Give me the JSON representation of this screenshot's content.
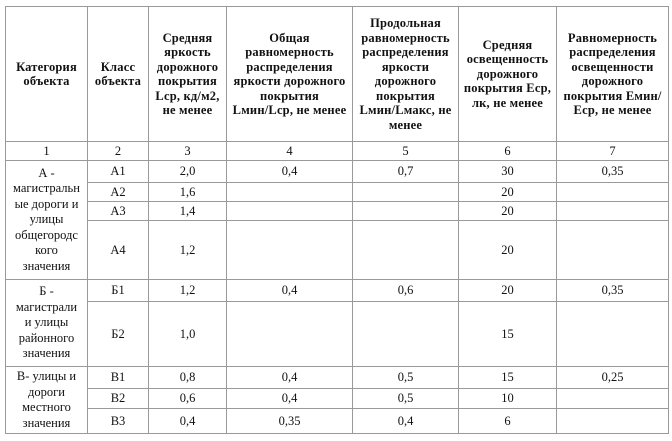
{
  "headers": [
    "Категория объекта",
    "Класс объекта",
    "Средняя яркость дорожного покрытия Lср, кд/м2, не менее",
    "Общая равномерность распределения яркости дорожного покрытия Lмин/Lср, не менее",
    "Продольная равномерность распределения яркости дорожного покрытия Lмин/Lмакс, не менее",
    "Средняя освещенность дорожного покрытия Еср, лк, не менее",
    "Равномерность распределения освещенности дорожного покрытия Емин/Еср, не менее"
  ],
  "column_numbers": [
    "1",
    "2",
    "3",
    "4",
    "5",
    "6",
    "7"
  ],
  "groups": [
    {
      "category_lines": [
        "А -",
        "магистральн",
        "ые дороги и",
        "улицы",
        "общегородс",
        "кого",
        "значения"
      ],
      "rows": [
        {
          "class": "А1",
          "l_avg": "2,0",
          "l_uniform": "0,4",
          "l_long": "0,7",
          "e_avg": "30",
          "e_uniform": "0,35"
        },
        {
          "class": "А2",
          "l_avg": "1,6",
          "l_uniform": "",
          "l_long": "",
          "e_avg": "20",
          "e_uniform": ""
        },
        {
          "class": "А3",
          "l_avg": "1,4",
          "l_uniform": "",
          "l_long": "",
          "e_avg": "20",
          "e_uniform": ""
        },
        {
          "class": "А4",
          "l_avg": "1,2",
          "l_uniform": "",
          "l_long": "",
          "e_avg": "20",
          "e_uniform": ""
        }
      ]
    },
    {
      "category_lines": [
        "Б -",
        "магистрали",
        "и улицы",
        "районного",
        "значения"
      ],
      "rows": [
        {
          "class": "Б1",
          "l_avg": "1,2",
          "l_uniform": "0,4",
          "l_long": "0,6",
          "e_avg": "20",
          "e_uniform": "0,35"
        },
        {
          "class": "Б2",
          "l_avg": "1,0",
          "l_uniform": "",
          "l_long": "",
          "e_avg": "15",
          "e_uniform": ""
        }
      ]
    },
    {
      "category_lines": [
        "В- улицы и",
        "дороги",
        "местного",
        "значения"
      ],
      "rows": [
        {
          "class": "В1",
          "l_avg": "0,8",
          "l_uniform": "0,4",
          "l_long": "0,5",
          "e_avg": "15",
          "e_uniform": "0,25"
        },
        {
          "class": "В2",
          "l_avg": "0,6",
          "l_uniform": "0,4",
          "l_long": "0,5",
          "e_avg": "10",
          "e_uniform": ""
        },
        {
          "class": "В3",
          "l_avg": "0,4",
          "l_uniform": "0,35",
          "l_long": "0,4",
          "e_avg": "6",
          "e_uniform": ""
        }
      ]
    }
  ]
}
